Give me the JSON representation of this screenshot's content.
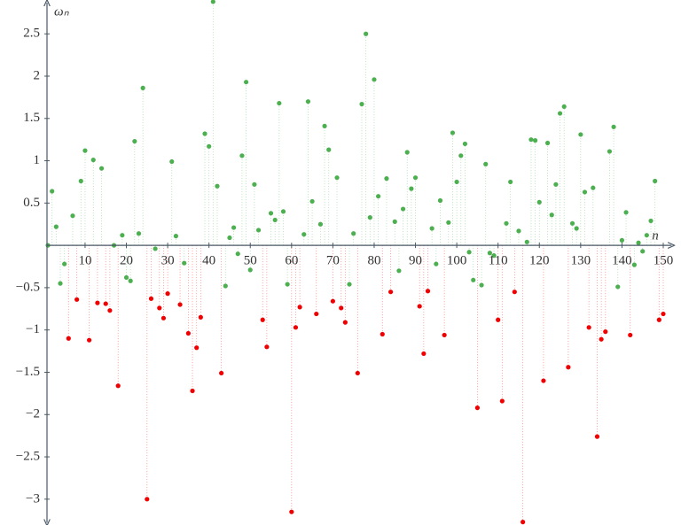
{
  "chart_data": {
    "type": "stem",
    "xlabel": "n",
    "ylabel": "ωₙ",
    "x": [
      1,
      2,
      3,
      4,
      5,
      6,
      7,
      8,
      9,
      10,
      11,
      12,
      13,
      14,
      15,
      16,
      17,
      18,
      19,
      20,
      21,
      22,
      23,
      24,
      25,
      26,
      27,
      28,
      29,
      30,
      31,
      32,
      33,
      34,
      35,
      36,
      37,
      38,
      39,
      40,
      41,
      42,
      43,
      44,
      45,
      46,
      47,
      48,
      49,
      50,
      51,
      52,
      53,
      54,
      55,
      56,
      57,
      58,
      59,
      60,
      61,
      62,
      63,
      64,
      65,
      66,
      67,
      68,
      69,
      70,
      71,
      72,
      73,
      74,
      75,
      76,
      77,
      78,
      79,
      80,
      81,
      82,
      83,
      84,
      85,
      86,
      87,
      88,
      89,
      90,
      91,
      92,
      93,
      94,
      95,
      96,
      97,
      98,
      99,
      100,
      101,
      102,
      103,
      104,
      105,
      106,
      107,
      108,
      109,
      110,
      111,
      112,
      113,
      114,
      115,
      116,
      117,
      118,
      119,
      120,
      121,
      122,
      123,
      124,
      125,
      126,
      127,
      128,
      129,
      130,
      131,
      132,
      133,
      134,
      135,
      136,
      137,
      138,
      139,
      140,
      141,
      142,
      143,
      144,
      145,
      146,
      147,
      148,
      149,
      150
    ],
    "series": [
      {
        "color": "#4caf50",
        "values": [
          0.0,
          0.64,
          0.22,
          -0.45,
          -0.22,
          null,
          0.35,
          null,
          0.76,
          1.12,
          null,
          1.01,
          null,
          0.91,
          null,
          null,
          0.0,
          null,
          0.12,
          -0.38,
          -0.42,
          1.23,
          0.14,
          1.86,
          null,
          null,
          -0.04,
          null,
          null,
          null,
          0.99,
          0.11,
          null,
          -0.21,
          null,
          null,
          null,
          null,
          1.32,
          1.17,
          2.88,
          0.7,
          null,
          -0.48,
          0.09,
          0.21,
          -0.1,
          1.06,
          1.93,
          -0.29,
          0.72,
          0.18,
          null,
          null,
          0.38,
          0.3,
          1.68,
          0.4,
          -0.46,
          null,
          null,
          null,
          0.13,
          1.7,
          0.52,
          null,
          0.25,
          1.41,
          1.13,
          null,
          0.8,
          null,
          null,
          -0.46,
          0.14,
          null,
          1.67,
          2.5,
          0.33,
          1.96,
          0.58,
          null,
          0.79,
          null,
          0.28,
          -0.3,
          0.43,
          1.1,
          0.67,
          0.8,
          null,
          null,
          null,
          0.2,
          -0.22,
          0.53,
          null,
          0.27,
          1.33,
          0.75,
          1.06,
          1.2,
          -0.08,
          -0.41,
          null,
          -0.47,
          0.96,
          -0.09,
          -0.12,
          null,
          null,
          0.26,
          0.75,
          null,
          0.17,
          null,
          0.04,
          1.25,
          1.24,
          0.51,
          null,
          1.21,
          0.36,
          0.72,
          1.56,
          1.64,
          null,
          0.26,
          0.2,
          1.31,
          0.63,
          null,
          0.68,
          null,
          null,
          null,
          1.11,
          1.4,
          -0.49,
          0.06,
          0.39,
          null,
          -0.23,
          0.03,
          -0.07,
          0.12,
          0.29,
          0.76,
          null,
          null
        ]
      },
      {
        "color": "#f00000",
        "values": [
          null,
          null,
          null,
          null,
          null,
          -1.1,
          null,
          -0.64,
          null,
          null,
          -1.12,
          null,
          -0.68,
          null,
          -0.69,
          -0.77,
          null,
          -1.66,
          null,
          null,
          null,
          null,
          null,
          null,
          -3.0,
          -0.63,
          null,
          -0.74,
          -0.86,
          -0.57,
          null,
          null,
          -0.7,
          null,
          -1.04,
          -1.72,
          -1.21,
          -0.85,
          null,
          null,
          null,
          null,
          -1.51,
          null,
          null,
          null,
          null,
          null,
          null,
          null,
          null,
          null,
          -0.88,
          -1.2,
          null,
          null,
          null,
          null,
          null,
          -3.15,
          -0.97,
          -0.73,
          null,
          null,
          null,
          -0.81,
          null,
          null,
          null,
          -0.66,
          null,
          -0.74,
          -0.91,
          null,
          null,
          -1.51,
          null,
          null,
          null,
          null,
          null,
          -1.05,
          null,
          -0.55,
          null,
          null,
          null,
          null,
          null,
          null,
          -0.72,
          -1.28,
          -0.54,
          null,
          null,
          null,
          -1.06,
          null,
          null,
          null,
          null,
          null,
          null,
          null,
          -1.92,
          null,
          null,
          null,
          null,
          -0.88,
          -1.84,
          null,
          null,
          -0.55,
          null,
          -3.27,
          null,
          null,
          null,
          null,
          -1.6,
          null,
          null,
          null,
          null,
          null,
          -1.44,
          null,
          null,
          null,
          null,
          -0.97,
          null,
          -2.26,
          -1.11,
          -1.02,
          null,
          null,
          null,
          null,
          null,
          -1.06,
          null,
          null,
          null,
          null,
          null,
          null,
          -0.88,
          -0.81
        ]
      }
    ],
    "xlim": [
      0.5,
      152
    ],
    "ylim": [
      -3.3,
      2.9
    ],
    "xticks": [
      10,
      20,
      30,
      40,
      50,
      60,
      70,
      80,
      90,
      100,
      110,
      120,
      130,
      140,
      150
    ],
    "yticks": [
      {
        "value": -3,
        "label": "−3"
      },
      {
        "value": -2.5,
        "label": "−2.5"
      },
      {
        "value": -2,
        "label": "−2"
      },
      {
        "value": -1.5,
        "label": "−1.5"
      },
      {
        "value": -1,
        "label": "−1"
      },
      {
        "value": -0.5,
        "label": "−0.5"
      },
      0.5,
      1,
      1.5,
      2,
      2.5
    ]
  }
}
